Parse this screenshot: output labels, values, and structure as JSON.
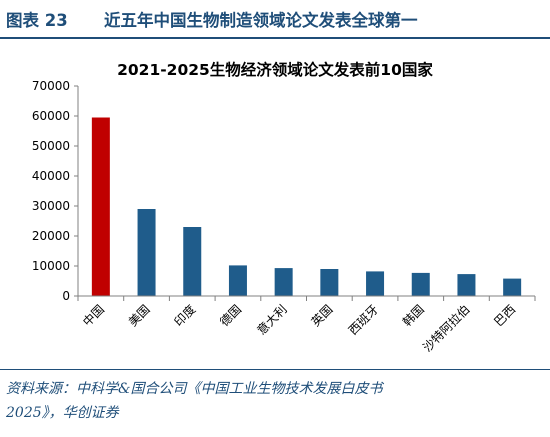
{
  "figure": {
    "label": "图表 23",
    "title": "近五年中国生物制造领域论文发表全球第一"
  },
  "source": {
    "line1": "资料来源：中科学&国合公司《中国工业生物技术发展白皮书",
    "line2": "2025》，华创证券"
  },
  "chart_data": {
    "type": "bar",
    "title": "2021-2025生物经济领域论文发表前10国家",
    "categories": [
      "中国",
      "美国",
      "印度",
      "德国",
      "意大利",
      "英国",
      "西班牙",
      "韩国",
      "沙特阿拉伯",
      "巴西"
    ],
    "values": [
      59500,
      29000,
      23000,
      10200,
      9300,
      9000,
      8200,
      7700,
      7300,
      5800
    ],
    "ylim": [
      0,
      70000
    ],
    "yticks": [
      "0",
      "10000",
      "20000",
      "30000",
      "40000",
      "50000",
      "60000",
      "70000"
    ],
    "colors": {
      "highlight": "#c00000",
      "default": "#1f5c8b"
    },
    "grid": false
  }
}
